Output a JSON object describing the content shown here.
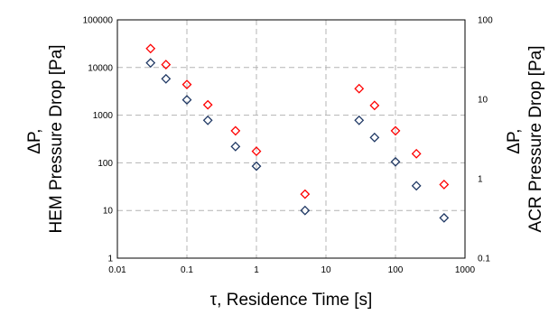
{
  "chart_data": {
    "type": "scatter",
    "xlabel": "τ, Residence Time [s]",
    "ylabel_left_line1": "ΔP,",
    "ylabel_left_line2": "HEM Pressure Drop [Pa]",
    "ylabel_right_line1": "ΔP,",
    "ylabel_right_line2": "ACR Pressure Drop [Pa]",
    "x_scale": "log",
    "xlim": [
      0.01,
      1000
    ],
    "x_ticks": [
      "0.01",
      "0.1",
      "1",
      "10",
      "100",
      "1000"
    ],
    "y_left_scale": "log",
    "ylim_left": [
      1,
      100000
    ],
    "y_left_ticks": [
      "1",
      "10",
      "100",
      "1000",
      "10000",
      "100000"
    ],
    "y_right_scale": "log",
    "ylim_right": [
      0.1,
      100
    ],
    "y_right_ticks": [
      "0.1",
      "1",
      "10",
      "100"
    ],
    "grid": true,
    "marker": "diamond",
    "series": [
      {
        "color": "#1f3864",
        "points": [
          {
            "x": 0.03,
            "y": 12500
          },
          {
            "x": 0.05,
            "y": 5800
          },
          {
            "x": 0.1,
            "y": 2100
          },
          {
            "x": 0.2,
            "y": 780
          },
          {
            "x": 0.5,
            "y": 220
          },
          {
            "x": 1,
            "y": 85
          },
          {
            "x": 5,
            "y": 10
          },
          {
            "x": 30,
            "y": 780
          },
          {
            "x": 50,
            "y": 340
          },
          {
            "x": 100,
            "y": 105
          },
          {
            "x": 200,
            "y": 33
          },
          {
            "x": 500,
            "y": 7
          }
        ]
      },
      {
        "color": "#ff0000",
        "points": [
          {
            "x": 0.03,
            "y": 25000
          },
          {
            "x": 0.05,
            "y": 11500
          },
          {
            "x": 0.1,
            "y": 4400
          },
          {
            "x": 0.2,
            "y": 1650
          },
          {
            "x": 0.5,
            "y": 470
          },
          {
            "x": 1,
            "y": 175
          },
          {
            "x": 5,
            "y": 22
          },
          {
            "x": 30,
            "y": 3600
          },
          {
            "x": 50,
            "y": 1600
          },
          {
            "x": 100,
            "y": 470
          },
          {
            "x": 200,
            "y": 155
          },
          {
            "x": 500,
            "y": 35
          }
        ]
      }
    ]
  }
}
